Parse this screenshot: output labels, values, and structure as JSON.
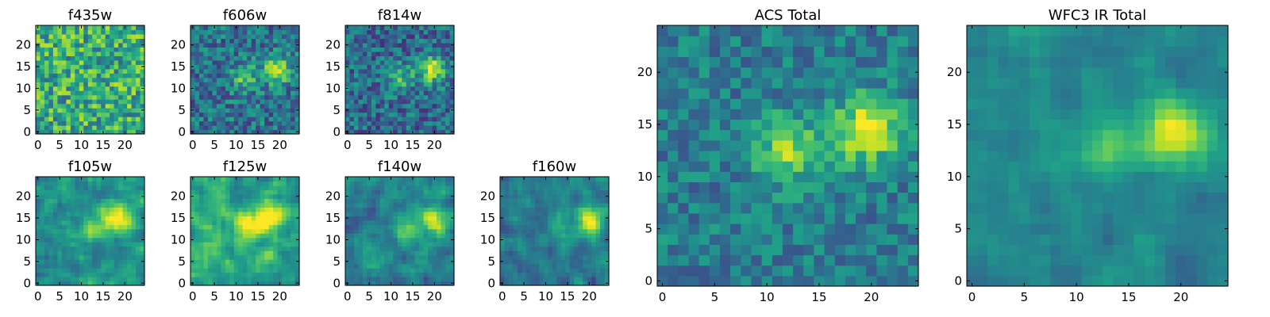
{
  "chart_data": [
    {
      "type": "heatmap",
      "title": "f435w",
      "x_ticks": [
        "0",
        "5",
        "10",
        "15",
        "20"
      ],
      "y_ticks": [
        "0",
        "5",
        "10",
        "15",
        "20"
      ],
      "xlim": [
        0,
        25
      ],
      "ylim": [
        0,
        25
      ],
      "colormap": "viridis",
      "grid": false,
      "blob_centers": [],
      "bright_level": 0.62,
      "noise": 0.28,
      "smooth": false,
      "seed": 11
    },
    {
      "type": "heatmap",
      "title": "f606w",
      "x_ticks": [
        "0",
        "5",
        "10",
        "15",
        "20"
      ],
      "y_ticks": [
        "0",
        "5",
        "10",
        "15",
        "20"
      ],
      "xlim": [
        0,
        25
      ],
      "ylim": [
        0,
        25
      ],
      "colormap": "viridis",
      "grid": false,
      "blob_centers": [
        [
          19.5,
          14.5,
          1.0
        ],
        [
          12,
          12.5,
          0.6
        ]
      ],
      "bright_level": 0.38,
      "noise": 0.22,
      "smooth": false,
      "seed": 23
    },
    {
      "type": "heatmap",
      "title": "f814w",
      "x_ticks": [
        "0",
        "5",
        "10",
        "15",
        "20"
      ],
      "y_ticks": [
        "0",
        "5",
        "10",
        "15",
        "20"
      ],
      "xlim": [
        0,
        25
      ],
      "ylim": [
        0,
        25
      ],
      "colormap": "viridis",
      "grid": false,
      "blob_centers": [
        [
          19.5,
          14.5,
          1.0
        ],
        [
          12,
          12.5,
          0.55
        ]
      ],
      "bright_level": 0.35,
      "noise": 0.22,
      "smooth": false,
      "seed": 37
    },
    {
      "type": "heatmap",
      "title": "f105w",
      "x_ticks": [
        "0",
        "5",
        "10",
        "15",
        "20"
      ],
      "y_ticks": [
        "0",
        "5",
        "10",
        "15",
        "20"
      ],
      "xlim": [
        0,
        25
      ],
      "ylim": [
        0,
        25
      ],
      "colormap": "viridis",
      "grid": false,
      "blob_centers": [
        [
          18.5,
          15,
          1.0
        ],
        [
          13,
          13,
          0.6
        ]
      ],
      "bright_level": 0.5,
      "noise": 0.22,
      "smooth": true,
      "seed": 41
    },
    {
      "type": "heatmap",
      "title": "f125w",
      "x_ticks": [
        "0",
        "5",
        "10",
        "15",
        "20"
      ],
      "y_ticks": [
        "0",
        "5",
        "10",
        "15",
        "20"
      ],
      "xlim": [
        0,
        25
      ],
      "ylim": [
        0,
        25
      ],
      "colormap": "viridis",
      "grid": false,
      "blob_centers": [
        [
          18,
          15,
          0.9
        ],
        [
          13,
          13,
          0.7
        ]
      ],
      "bright_level": 0.6,
      "noise": 0.22,
      "smooth": true,
      "seed": 53
    },
    {
      "type": "heatmap",
      "title": "f140w",
      "x_ticks": [
        "0",
        "5",
        "10",
        "15",
        "20"
      ],
      "y_ticks": [
        "0",
        "5",
        "10",
        "15",
        "20"
      ],
      "xlim": [
        0,
        25
      ],
      "ylim": [
        0,
        25
      ],
      "colormap": "viridis",
      "grid": false,
      "blob_centers": [
        [
          20,
          14.5,
          1.0
        ],
        [
          14,
          13,
          0.5
        ]
      ],
      "bright_level": 0.45,
      "noise": 0.22,
      "smooth": true,
      "seed": 67
    },
    {
      "type": "heatmap",
      "title": "f160w",
      "x_ticks": [
        "0",
        "5",
        "10",
        "15",
        "20"
      ],
      "y_ticks": [
        "0",
        "5",
        "10",
        "15",
        "20"
      ],
      "xlim": [
        0,
        25
      ],
      "ylim": [
        0,
        25
      ],
      "colormap": "viridis",
      "grid": false,
      "blob_centers": [
        [
          20,
          14.5,
          1.0
        ],
        [
          14,
          13,
          0.4
        ]
      ],
      "bright_level": 0.42,
      "noise": 0.2,
      "smooth": true,
      "seed": 79
    },
    {
      "type": "heatmap",
      "title": "ACS Total",
      "x_ticks": [
        "0",
        "5",
        "10",
        "15",
        "20"
      ],
      "y_ticks": [
        "0",
        "5",
        "10",
        "15",
        "20"
      ],
      "xlim": [
        0,
        25
      ],
      "ylim": [
        0,
        25
      ],
      "colormap": "viridis",
      "grid": false,
      "blob_centers": [
        [
          19.5,
          14.5,
          1.0
        ],
        [
          12,
          12.5,
          0.75
        ]
      ],
      "bright_level": 0.42,
      "noise": 0.16,
      "smooth": false,
      "seed": 97
    },
    {
      "type": "heatmap",
      "title": "WFC3 IR Total",
      "x_ticks": [
        "0",
        "5",
        "10",
        "15",
        "20"
      ],
      "y_ticks": [
        "0",
        "5",
        "10",
        "15",
        "20"
      ],
      "xlim": [
        0,
        25
      ],
      "ylim": [
        0,
        25
      ],
      "colormap": "viridis",
      "grid": false,
      "blob_centers": [
        [
          19.5,
          14.5,
          1.0
        ],
        [
          13,
          13,
          0.55
        ]
      ],
      "bright_level": 0.45,
      "noise": 0.13,
      "smooth": true,
      "seed": 131
    }
  ],
  "colors": {
    "viridis": [
      "#440154",
      "#482878",
      "#3e4989",
      "#31688e",
      "#26828e",
      "#1f9e89",
      "#35b779",
      "#6ece58",
      "#b5de2b",
      "#fde725"
    ],
    "axes": "#000000",
    "background": "#ffffff"
  }
}
